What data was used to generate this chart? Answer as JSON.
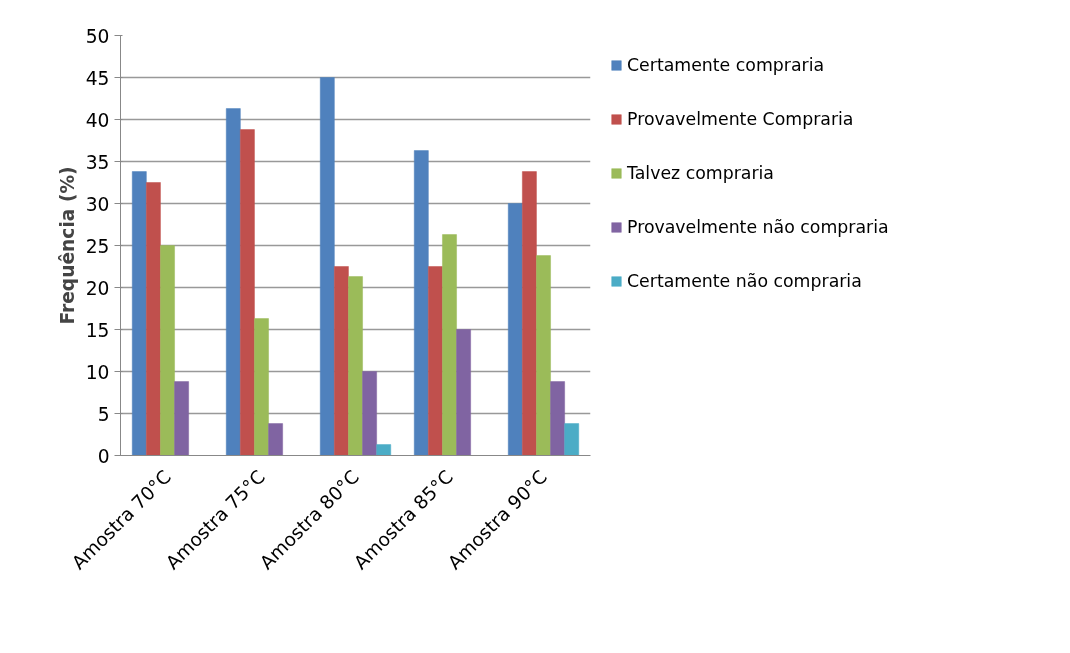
{
  "chart_data": {
    "type": "bar",
    "ylabel": "Frequência (%)",
    "categories": [
      "Amostra 70°C",
      "Amostra 75°C",
      "Amostra 80°C",
      "Amostra 85°C",
      "Amostra 90°C"
    ],
    "series": [
      {
        "name": "Certamente compraria",
        "color": "#4f81bd",
        "values": [
          33.8,
          41.3,
          45,
          36.3,
          30
        ]
      },
      {
        "name": "Provavelmente Compraria",
        "color": "#c0504d",
        "values": [
          32.5,
          38.8,
          22.5,
          22.5,
          33.8
        ]
      },
      {
        "name": "Talvez compraria",
        "color": "#9bbb59",
        "values": [
          25,
          16.3,
          21.3,
          26.3,
          23.8
        ]
      },
      {
        "name": "Provavelmente não compraria",
        "color": "#8064a2",
        "values": [
          8.8,
          3.8,
          10,
          15,
          8.8
        ]
      },
      {
        "name": "Certamente não compraria",
        "color": "#4bacc6",
        "values": [
          0,
          0,
          1.3,
          0,
          3.8
        ]
      }
    ],
    "ylim": [
      0,
      50
    ],
    "yticks": [
      0,
      5,
      10,
      15,
      20,
      25,
      30,
      35,
      40,
      45,
      50
    ],
    "grid": "y",
    "legend": "right"
  }
}
